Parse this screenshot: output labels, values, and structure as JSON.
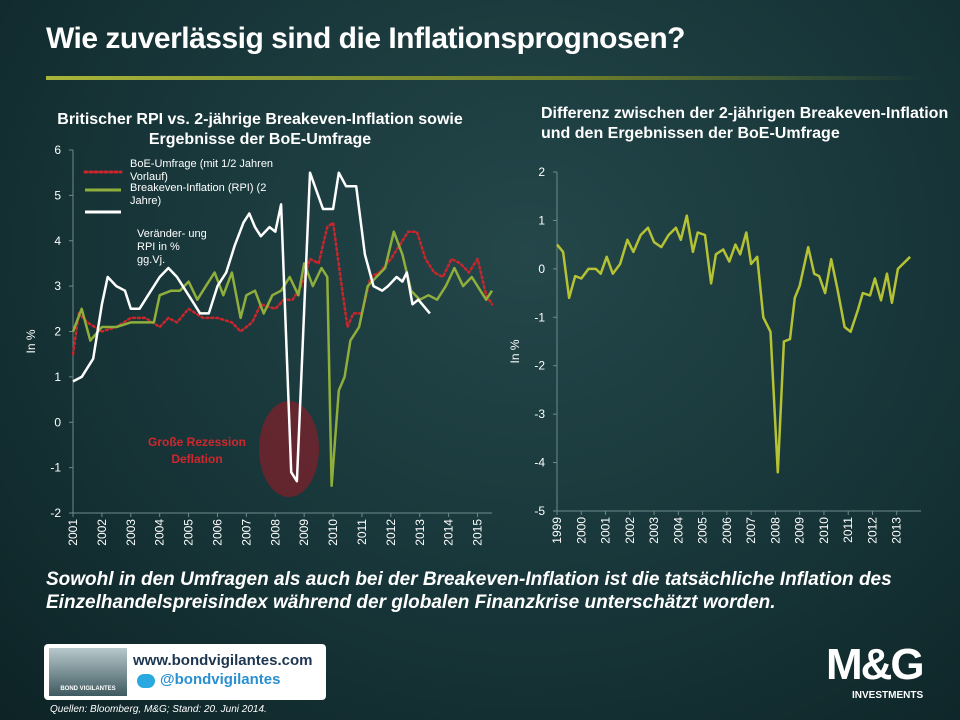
{
  "title": "Wie zuverlässig sind die Inflationsprognosen?",
  "chart_data": [
    {
      "type": "line",
      "title": "Britischer RPI vs. 2-jährige Breakeven-Inflation sowie Ergebnisse der BoE-Umfrage",
      "ylabel": "In %",
      "xlim": [
        2001,
        2015.5
      ],
      "xticks": [
        2001,
        2002,
        2003,
        2004,
        2005,
        2006,
        2007,
        2008,
        2009,
        2010,
        2011,
        2012,
        2013,
        2014,
        2015
      ],
      "ylim": [
        -2,
        6
      ],
      "yticks": [
        -2,
        -1,
        0,
        1,
        2,
        3,
        4,
        5,
        6
      ],
      "legend": "upper left",
      "annotations": [
        "Große Rezession",
        "Deflation"
      ],
      "series": [
        {
          "name": "BoE-Umfrage (mit 1/2 Jahren Vorlauf)",
          "color": "#c8262c",
          "dash": "dotted",
          "x": [
            2001,
            2001.2,
            2001.5,
            2002,
            2002.5,
            2003,
            2003.5,
            2004,
            2004.3,
            2004.6,
            2005,
            2005.5,
            2006,
            2006.5,
            2006.8,
            2007.2,
            2007.5,
            2008,
            2008.3,
            2008.6,
            2008.9,
            2009.2,
            2009.5,
            2009.8,
            2010,
            2010.3,
            2010.5,
            2010.7,
            2011,
            2011.3,
            2011.6,
            2012,
            2012.3,
            2012.6,
            2012.9,
            2013.2,
            2013.5,
            2013.8,
            2014.1,
            2014.4,
            2014.7,
            2015,
            2015.3,
            2015.5
          ],
          "values": [
            1.5,
            2.4,
            2.2,
            2.0,
            2.1,
            2.3,
            2.3,
            2.1,
            2.3,
            2.2,
            2.5,
            2.3,
            2.3,
            2.2,
            2.0,
            2.2,
            2.6,
            2.5,
            2.7,
            2.7,
            3.0,
            3.6,
            3.5,
            4.3,
            4.4,
            3.0,
            2.1,
            2.4,
            2.4,
            3.2,
            3.3,
            3.6,
            3.9,
            4.2,
            4.2,
            3.6,
            3.3,
            3.2,
            3.6,
            3.5,
            3.3,
            3.6,
            2.8,
            2.6
          ]
        },
        {
          "name": "Breakeven-Inflation (RPI) (2 Jahre)",
          "color": "#8fae3c",
          "x": [
            2001,
            2001.3,
            2001.6,
            2002,
            2002.5,
            2003,
            2003.5,
            2003.8,
            2004,
            2004.4,
            2004.7,
            2005,
            2005.3,
            2005.6,
            2005.9,
            2006.2,
            2006.5,
            2006.8,
            2007,
            2007.3,
            2007.6,
            2007.9,
            2008.2,
            2008.5,
            2008.8,
            2009,
            2009.3,
            2009.6,
            2009.8,
            2009.95,
            2010.2,
            2010.4,
            2010.6,
            2010.9,
            2011.2,
            2011.5,
            2011.8,
            2012.1,
            2012.4,
            2012.7,
            2013,
            2013.3,
            2013.6,
            2013.9,
            2014.2,
            2014.5,
            2014.8,
            2015.1,
            2015.3,
            2015.5
          ],
          "values": [
            2.0,
            2.5,
            1.8,
            2.1,
            2.1,
            2.2,
            2.2,
            2.2,
            2.8,
            2.9,
            2.9,
            3.1,
            2.7,
            3.0,
            3.3,
            2.8,
            3.3,
            2.3,
            2.8,
            2.9,
            2.4,
            2.8,
            2.9,
            3.2,
            2.8,
            3.5,
            3.0,
            3.4,
            3.2,
            -1.4,
            0.7,
            1.0,
            1.8,
            2.1,
            3.0,
            3.2,
            3.4,
            4.2,
            3.7,
            2.9,
            2.7,
            2.8,
            2.7,
            3.0,
            3.4,
            3.0,
            3.2,
            2.9,
            2.7,
            2.9
          ]
        },
        {
          "name": "Veränder- ung RPI in % gg.Vj.",
          "color": "#ffffff",
          "x": [
            2001,
            2001.3,
            2001.7,
            2002,
            2002.2,
            2002.5,
            2002.8,
            2003,
            2003.3,
            2003.6,
            2004,
            2004.3,
            2004.6,
            2004.9,
            2005.2,
            2005.4,
            2005.7,
            2006,
            2006.3,
            2006.6,
            2006.9,
            2007.1,
            2007.3,
            2007.5,
            2007.8,
            2008,
            2008.2,
            2008.55,
            2008.75,
            2009.2,
            2009.65,
            2010,
            2010.2,
            2010.45,
            2010.8,
            2011.1,
            2011.4,
            2011.7,
            2011.9,
            2012.2,
            2012.4,
            2012.55,
            2012.75,
            2012.95,
            2013.35
          ],
          "values": [
            0.9,
            1.0,
            1.4,
            2.6,
            3.2,
            3.0,
            2.9,
            2.5,
            2.5,
            2.8,
            3.2,
            3.4,
            3.2,
            2.9,
            2.6,
            2.4,
            2.4,
            3.0,
            3.3,
            3.9,
            4.4,
            4.6,
            4.3,
            4.1,
            4.3,
            4.2,
            4.8,
            -1.1,
            -1.3,
            5.5,
            4.7,
            4.7,
            5.5,
            5.2,
            5.2,
            3.7,
            3.0,
            2.9,
            3.0,
            3.2,
            3.1,
            3.3,
            2.6,
            2.7,
            2.4
          ]
        }
      ]
    },
    {
      "type": "line",
      "title": "Differenz zwischen der 2-jährigen Breakeven-Inflation und den Ergebnissen der BoE-Umfrage",
      "ylabel": "In %",
      "xlim": [
        1999,
        2014
      ],
      "xticks": [
        1999,
        2000,
        2001,
        2002,
        2003,
        2004,
        2005,
        2006,
        2007,
        2008,
        2009,
        2010,
        2011,
        2012,
        2013
      ],
      "ylim": [
        -5,
        2
      ],
      "yticks": [
        -5,
        -4,
        -3,
        -2,
        -1,
        0,
        1,
        2
      ],
      "series": [
        {
          "color": "#b5c234",
          "x": [
            1999,
            1999.25,
            1999.5,
            1999.75,
            2000,
            2000.3,
            2000.6,
            2000.8,
            2001.05,
            2001.3,
            2001.6,
            2001.9,
            2002.15,
            2002.45,
            2002.75,
            2003,
            2003.3,
            2003.6,
            2003.9,
            2004.1,
            2004.35,
            2004.6,
            2004.8,
            2005.1,
            2005.35,
            2005.55,
            2005.85,
            2006.1,
            2006.35,
            2006.55,
            2006.8,
            2007,
            2007.25,
            2007.5,
            2007.8,
            2008.1,
            2008.35,
            2008.6,
            2008.8,
            2009,
            2009.35,
            2009.6,
            2009.8,
            2010.05,
            2010.3,
            2010.55,
            2010.85,
            2011.1,
            2011.4,
            2011.6,
            2011.9,
            2012.1,
            2012.35,
            2012.6,
            2012.8,
            2013.05,
            2013.55
          ],
          "values": [
            0.5,
            0.35,
            -0.6,
            -0.15,
            -0.2,
            0.0,
            0.0,
            -0.1,
            0.25,
            -0.1,
            0.1,
            0.6,
            0.35,
            0.7,
            0.85,
            0.55,
            0.45,
            0.7,
            0.85,
            0.6,
            1.1,
            0.35,
            0.75,
            0.7,
            -0.3,
            0.3,
            0.4,
            0.15,
            0.5,
            0.3,
            0.75,
            0.1,
            0.25,
            -1.0,
            -1.3,
            -4.2,
            -1.5,
            -1.45,
            -0.6,
            -0.35,
            0.45,
            -0.1,
            -0.15,
            -0.5,
            0.2,
            -0.4,
            -1.2,
            -1.3,
            -0.85,
            -0.5,
            -0.55,
            -0.2,
            -0.65,
            -0.1,
            -0.7,
            0.0,
            0.25
          ]
        }
      ]
    }
  ],
  "caption": "Sowohl in den Umfragen als auch bei der Breakeven-Inflation ist die tatsächliche Inflation des Einzelhandelspreisindex während der globalen Finanzkrise unterschätzt worden.",
  "footer": {
    "logo_text": "BOND VIGILANTES",
    "website": "www.bondvigilantes.com",
    "twitter": "@bondvigilantes",
    "source": "Quellen: Bloomberg, M&G; Stand: 20. Juni 2014.",
    "brand": "M&G",
    "brand_sub": "INVESTMENTS"
  }
}
